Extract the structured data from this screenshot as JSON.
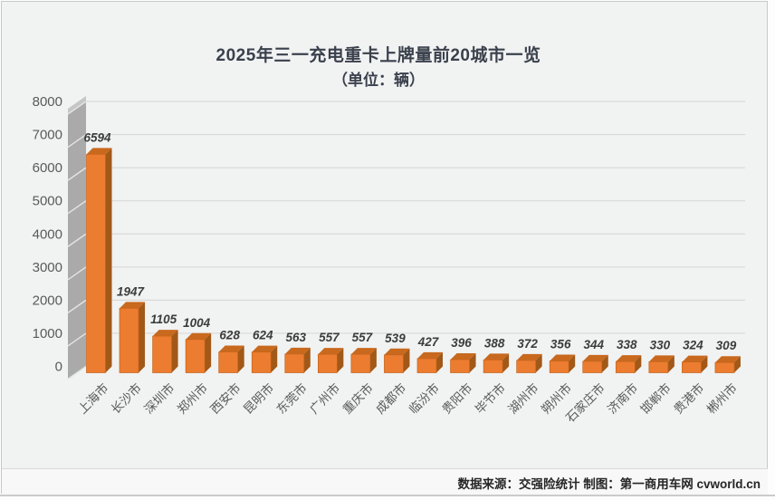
{
  "title": "2025年三一充电重卡上牌量前20城市一览",
  "subtitle": "（单位：辆）",
  "footer": "数据来源：交强险统计  制图：第一商用车网 cvworld.cn",
  "chart_data": {
    "type": "bar",
    "style": "3d-column",
    "title": "2025年三一充电重卡上牌量前20城市一览",
    "subtitle": "（单位：辆）",
    "categories": [
      "上海市",
      "长沙市",
      "深圳市",
      "郑州市",
      "西安市",
      "昆明市",
      "东莞市",
      "广州市",
      "重庆市",
      "成都市",
      "临汾市",
      "贵阳市",
      "毕节市",
      "湖州市",
      "朔州市",
      "石家庄市",
      "济南市",
      "邯郸市",
      "贵港市",
      "郴州市"
    ],
    "values": [
      6594,
      1947,
      1105,
      1004,
      628,
      624,
      563,
      557,
      557,
      539,
      427,
      396,
      388,
      372,
      356,
      344,
      338,
      330,
      324,
      309
    ],
    "xlabel": "",
    "ylabel": "",
    "ylim": [
      0,
      8000
    ],
    "ytick_step": 1000,
    "grid": true,
    "legend": "none",
    "colors": {
      "bar_front": "#EC7C30",
      "bar_top": "#C8691E",
      "bar_side": "#A25817",
      "bar_edge": "#C4641C",
      "wall_side": "#AAAAAA",
      "wall_top": "#C6C6C6",
      "wall_tick": "#E4E4E4",
      "grid_line": "#D9D9D9",
      "plot_bg": "#F1F2F2",
      "value_label": "#3C3C3C",
      "axis_label": "#5A5A5A",
      "title_color": "#3A414C",
      "footer_color": "#262626"
    }
  }
}
